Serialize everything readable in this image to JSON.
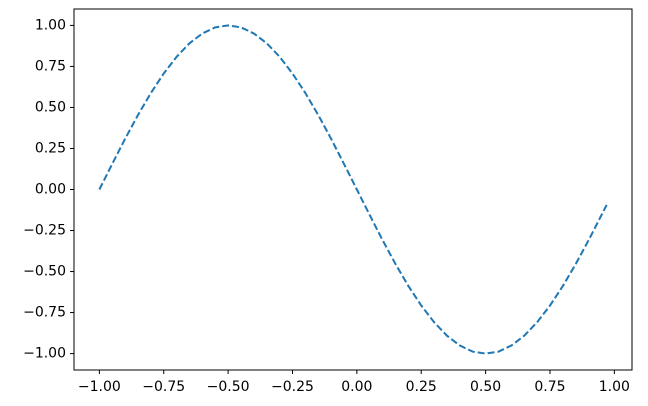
{
  "chart_data": {
    "type": "line",
    "x": [
      -1,
      -0.95,
      -0.9,
      -0.85,
      -0.8,
      -0.75,
      -0.7,
      -0.65,
      -0.6,
      -0.55,
      -0.5,
      -0.45,
      -0.4,
      -0.35,
      -0.3,
      -0.25,
      -0.2,
      -0.15,
      -0.1,
      -0.05,
      0,
      0.05,
      0.1,
      0.15,
      0.2,
      0.25,
      0.3,
      0.35,
      0.4,
      0.45,
      0.5,
      0.55,
      0.6,
      0.65,
      0.7,
      0.75,
      0.8,
      0.85,
      0.9,
      0.95,
      0.97
    ],
    "series": [
      {
        "color": "#1f77b4",
        "dash": "dashed",
        "values": [
          0,
          0.156,
          0.309,
          0.454,
          0.588,
          0.707,
          0.809,
          0.891,
          0.951,
          0.988,
          1,
          0.988,
          0.951,
          0.891,
          0.809,
          0.707,
          0.588,
          0.454,
          0.309,
          0.156,
          0,
          -0.156,
          -0.309,
          -0.454,
          -0.588,
          -0.707,
          -0.809,
          -0.891,
          -0.951,
          -0.988,
          -1,
          -0.988,
          -0.951,
          -0.891,
          -0.809,
          -0.707,
          -0.588,
          -0.454,
          -0.309,
          -0.156,
          -0.094
        ]
      }
    ],
    "xlim": [
      -1.0985,
      1.0685
    ],
    "ylim": [
      -1.1,
      1.1
    ],
    "xticks": [
      {
        "value": -1,
        "label": "−1.00"
      },
      {
        "value": -0.75,
        "label": "−0.75"
      },
      {
        "value": -0.5,
        "label": "−0.50"
      },
      {
        "value": -0.25,
        "label": "−0.25"
      },
      {
        "value": 0,
        "label": "0.00"
      },
      0.25,
      {
        "value": 0.5,
        "label": "0.50"
      },
      0.75,
      {
        "value": 1,
        "label": "1.00"
      }
    ],
    "yticks": [
      {
        "value": -1,
        "label": "−1.00"
      },
      {
        "value": -0.75,
        "label": "−0.75"
      },
      {
        "value": -0.5,
        "label": "−0.50"
      },
      {
        "value": -0.25,
        "label": "−0.25"
      },
      {
        "value": 0,
        "label": "0.00"
      },
      0.25,
      {
        "value": 0.5,
        "label": "0.50"
      },
      0.75,
      {
        "value": 1,
        "label": "1.00"
      }
    ],
    "grid": false
  }
}
